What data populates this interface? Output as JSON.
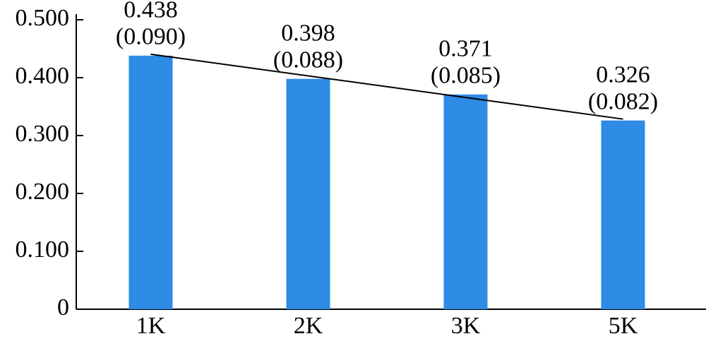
{
  "chart_data": {
    "type": "bar",
    "categories": [
      "1K",
      "2K",
      "3K",
      "5K"
    ],
    "values": [
      0.438,
      0.398,
      0.371,
      0.326
    ],
    "errors": [
      0.09,
      0.088,
      0.085,
      0.082
    ],
    "error_labels": [
      "(0.090)",
      "(0.088)",
      "(0.085)",
      "(0.082)"
    ],
    "color": "#2e8be6",
    "trend_line": true,
    "ylim": [
      0,
      0.5
    ],
    "yticks": [
      0,
      {
        "value": 0.1,
        "label": "0.100"
      },
      {
        "value": 0.2,
        "label": "0.200"
      },
      {
        "value": 0.3,
        "label": "0.300"
      },
      {
        "value": 0.4,
        "label": "0.400"
      },
      {
        "value": 0.5,
        "label": "0.500"
      }
    ]
  }
}
